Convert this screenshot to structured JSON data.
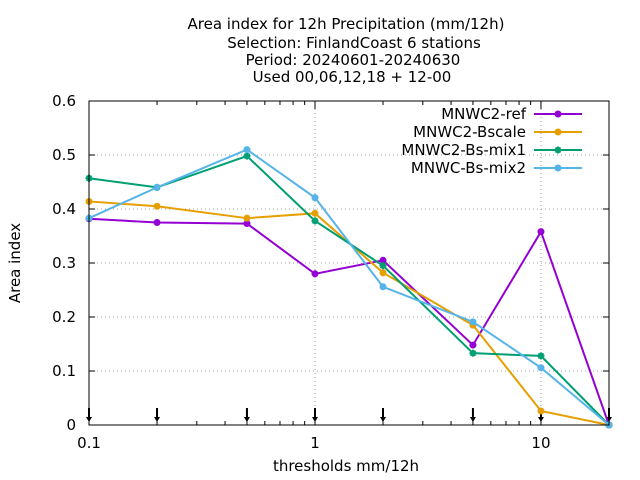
{
  "chart_data": {
    "type": "line",
    "title_lines": [
      "Area index  for 12h Precipitation (mm/12h)",
      "Selection: FinlandCoast      6 stations",
      "Period: 20240601-20240630",
      "Used 00,06,12,18 + 12-00"
    ],
    "xlabel": "thresholds mm/12h",
    "ylabel": "Area index",
    "x_scale": "log",
    "xlim": [
      0.1,
      20
    ],
    "ylim": [
      0,
      0.6
    ],
    "x_ticks": [
      0.1,
      1,
      10
    ],
    "x_tick_labels": [
      "0.1",
      "1",
      "10"
    ],
    "y_ticks": [
      0,
      0.1,
      0.2,
      0.3,
      0.4,
      0.5,
      0.6
    ],
    "y_tick_labels": [
      "0",
      "0.1",
      "0.2",
      "0.3",
      "0.4",
      "0.5",
      "0.6"
    ],
    "grid": true,
    "legend_position": "top-right",
    "threshold_markers": [
      0.1,
      0.2,
      0.5,
      1,
      2,
      5,
      10,
      20
    ],
    "x": [
      0.1,
      0.2,
      0.5,
      1,
      2,
      5,
      10,
      20
    ],
    "series": [
      {
        "name": "MNWC2-ref",
        "color": "#9400d3",
        "marker": "circle",
        "values": [
          0.382,
          0.375,
          0.373,
          0.28,
          0.305,
          0.148,
          0.358,
          0.0
        ]
      },
      {
        "name": "MNWC2-Bscale",
        "color": "#e69f00",
        "marker": "circle",
        "values": [
          0.414,
          0.405,
          0.383,
          0.392,
          0.282,
          0.185,
          0.026,
          0.0
        ]
      },
      {
        "name": "MNWC2-Bs-mix1",
        "color": "#009e73",
        "marker": "star",
        "values": [
          0.457,
          0.44,
          0.498,
          0.378,
          0.295,
          0.133,
          0.128,
          0.0
        ]
      },
      {
        "name": "MNWC-Bs-mix2",
        "color": "#56b4e9",
        "marker": "circle",
        "values": [
          0.383,
          0.44,
          0.51,
          0.421,
          0.256,
          0.191,
          0.106,
          0.0
        ]
      }
    ]
  }
}
